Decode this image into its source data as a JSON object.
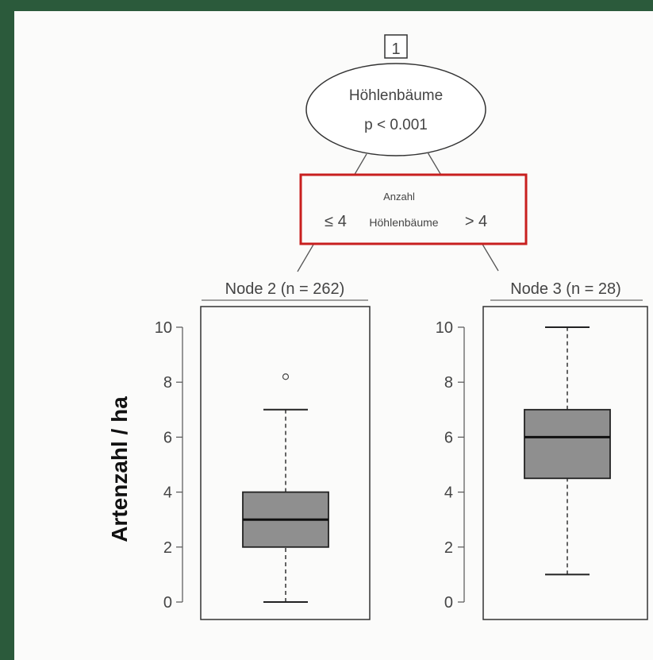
{
  "chart_data": {
    "type": "boxplot",
    "root": {
      "id": "1",
      "variable": "Höhlenbäume",
      "pvalue": "p < 0.001"
    },
    "split": {
      "heading": "Anzahl",
      "left_label": "≤ 4",
      "middle_label": "Höhlenbäume",
      "right_label": "> 4"
    },
    "ylabel": "Artenzahl / ha",
    "ylim": [
      0,
      10
    ],
    "yticks": [
      "0",
      "2",
      "4",
      "6",
      "8",
      "10"
    ],
    "nodes": [
      {
        "label": "Node 2 (n = 262)",
        "min": 0,
        "q1": 2,
        "median": 3,
        "q3": 4,
        "max": 7,
        "outliers": [
          8.2
        ]
      },
      {
        "label": "Node 3 (n = 28)",
        "min": 1,
        "q1": 4.5,
        "median": 6,
        "q3": 7,
        "max": 10,
        "outliers": []
      }
    ]
  },
  "colors": {
    "frame": "#2b5a3b",
    "box_fill": "#8f8f8f",
    "highlight": "#c81f1f"
  }
}
